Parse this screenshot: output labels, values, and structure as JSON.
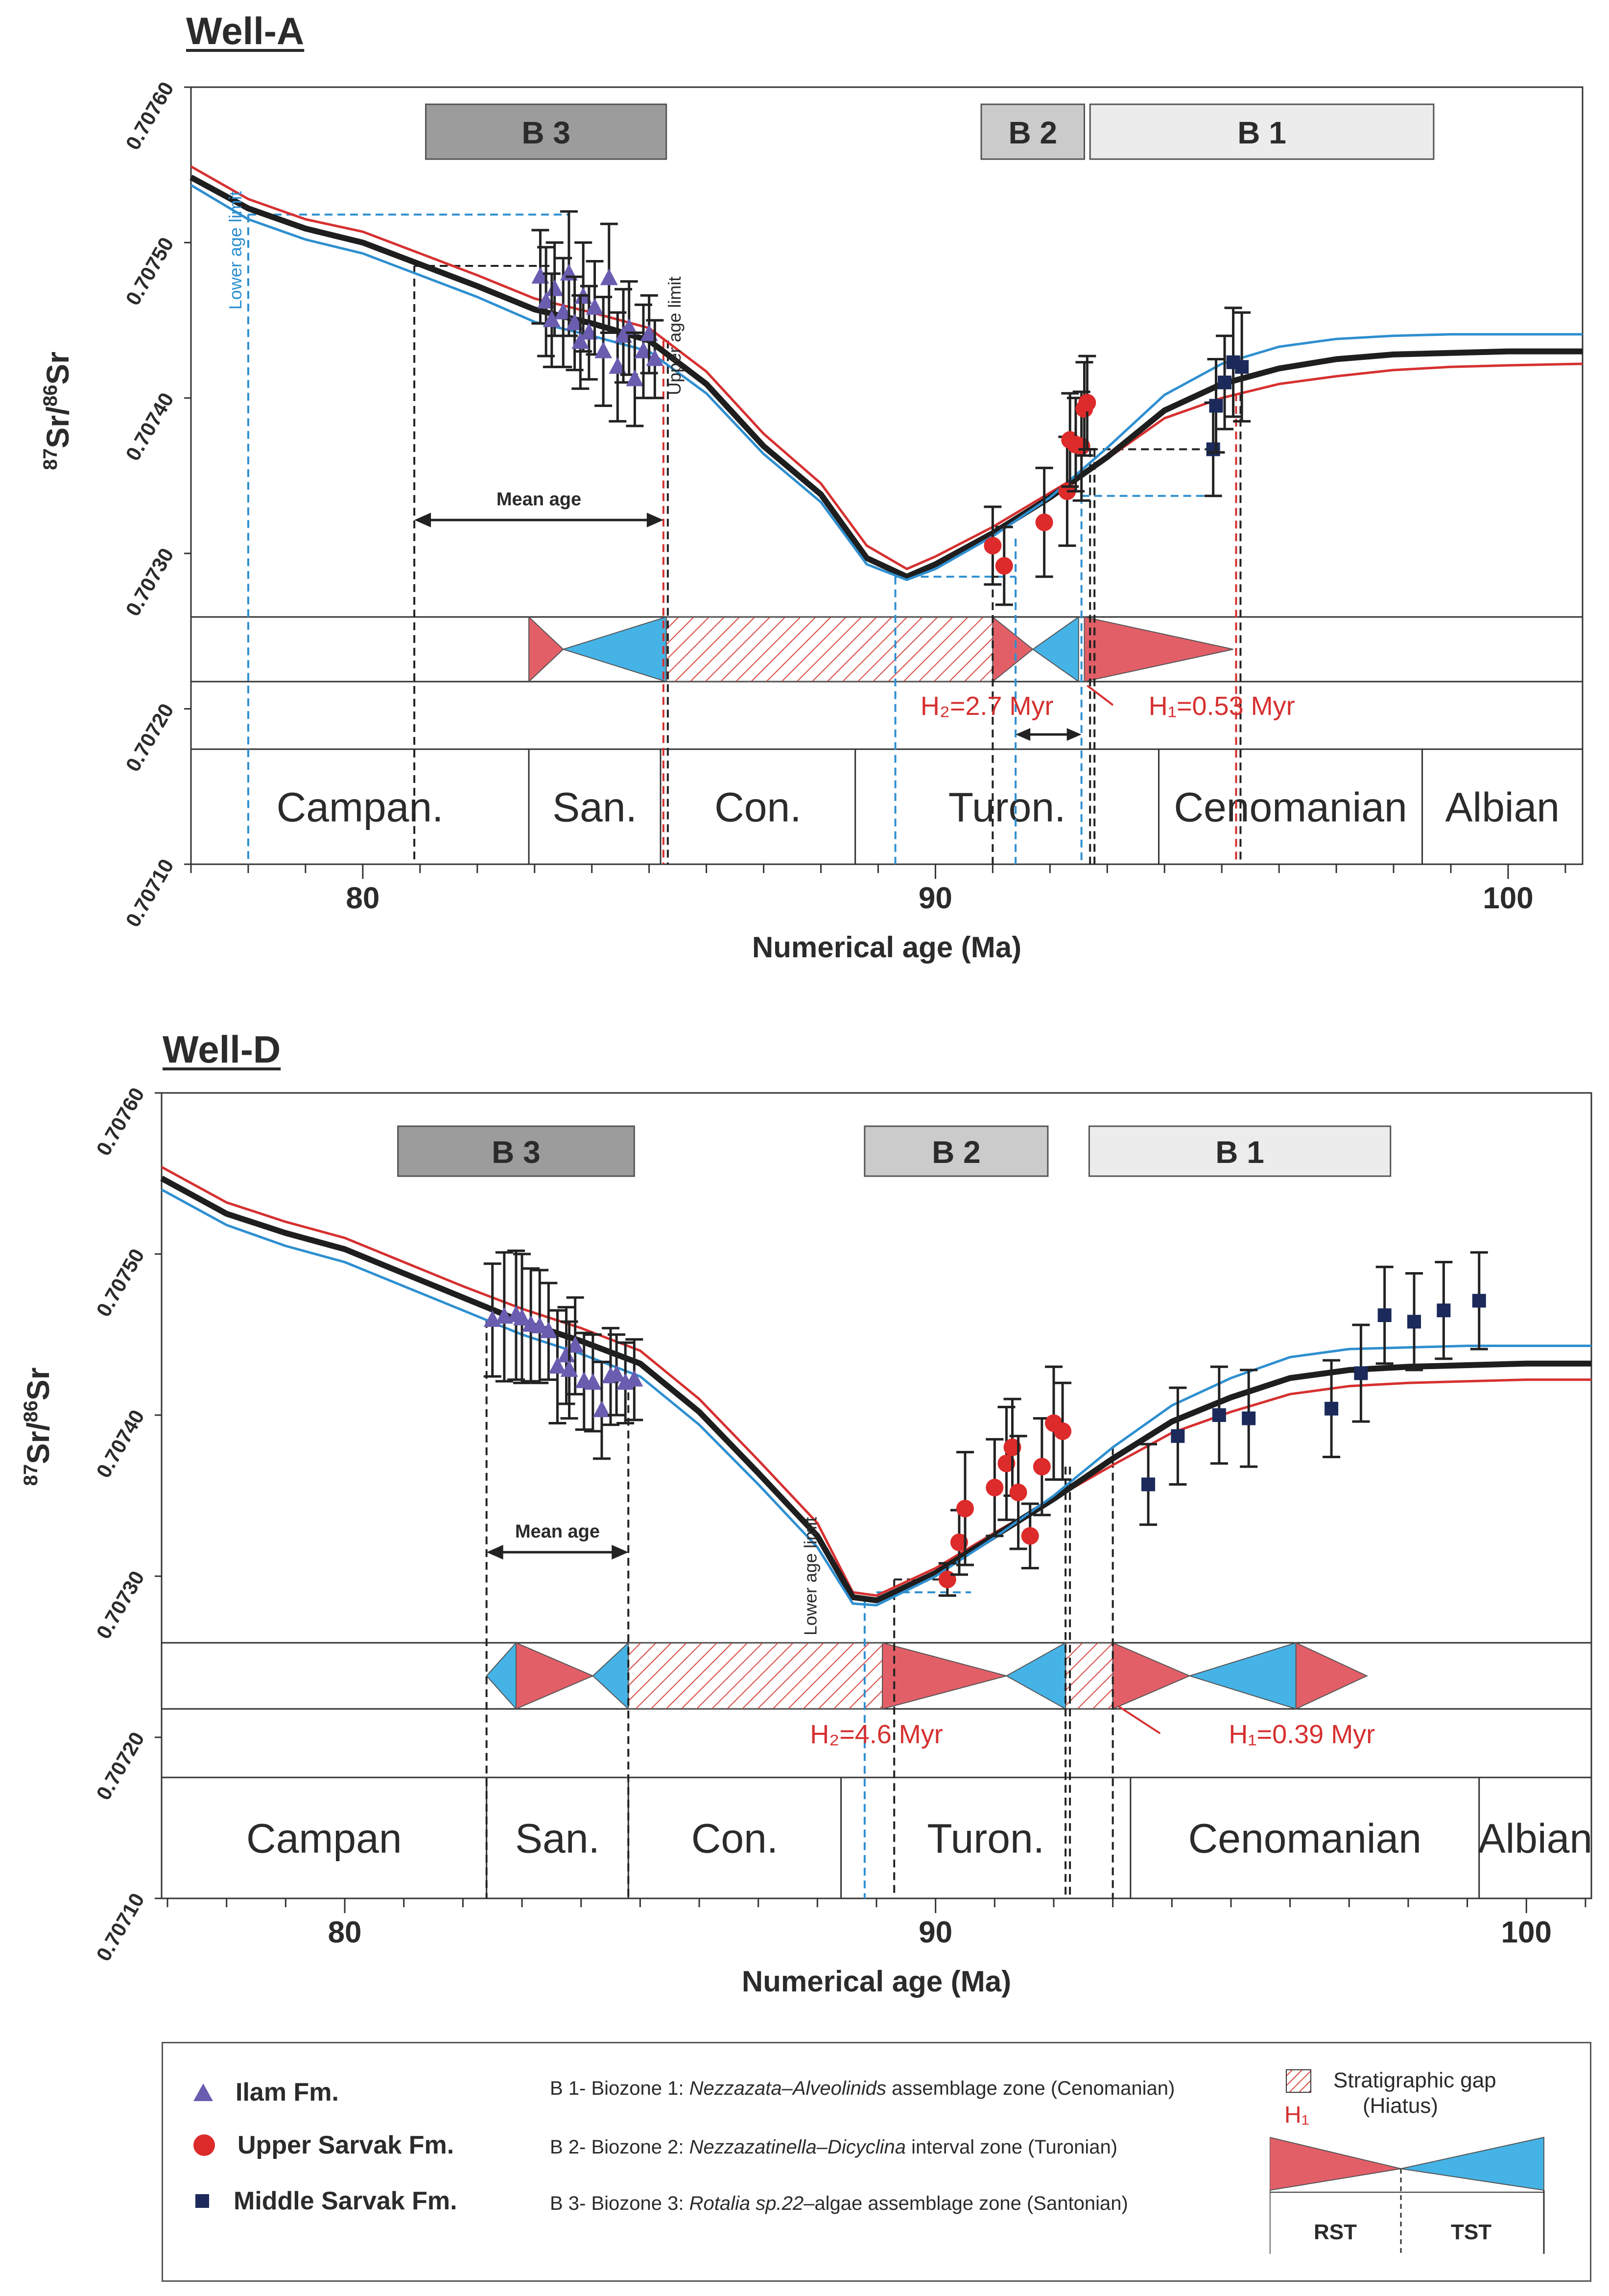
{
  "chart_data": [
    {
      "type": "line",
      "title": "Well-A",
      "xlabel": "Numerical age (Ma)",
      "ylabel": "87Sr/86Sr",
      "ylabel_sup1": "87",
      "ylabel_mid": "Sr/",
      "ylabel_sup2": "86",
      "ylabel_end": "Sr",
      "xlim": [
        77,
        101.3
      ],
      "ylim": [
        0.7071,
        0.7076
      ],
      "xticks": [
        80,
        90,
        100
      ],
      "xtick_labels": [
        "80",
        "90",
        "100"
      ],
      "yticks": [
        0.7071,
        0.7072,
        0.7073,
        0.7074,
        0.7075,
        0.7076
      ],
      "ytick_labels": [
        "0.70710",
        "0.70720",
        "0.70730",
        "0.70740",
        "0.70750",
        "0.70760"
      ],
      "stages": [
        {
          "name": "Campan.",
          "from": 77,
          "to": 82.9
        },
        {
          "name": "San.",
          "from": 82.9,
          "to": 85.2
        },
        {
          "name": "Con.",
          "from": 85.2,
          "to": 88.6
        },
        {
          "name": "Turon.",
          "from": 88.6,
          "to": 93.9
        },
        {
          "name": "Cenomanian",
          "from": 93.9,
          "to": 98.5
        },
        {
          "name": "Albian",
          "from": 98.5,
          "to": 101.3
        }
      ],
      "biozones": [
        {
          "label": "B 3",
          "from": 81.1,
          "to": 85.3,
          "color": "#9c9c9c"
        },
        {
          "label": "B 2",
          "from": 90.8,
          "to": 92.6,
          "color": "#cbcbcb"
        },
        {
          "label": "B 1",
          "from": 92.7,
          "to": 98.7,
          "color": "#ececec"
        }
      ],
      "sequences": [
        {
          "kind": "RST",
          "from": 82.9,
          "to": 83.5,
          "dir": "right"
        },
        {
          "kind": "TST",
          "from": 83.5,
          "to": 85.3,
          "dir": "left"
        },
        {
          "kind": "gap",
          "from": 85.3,
          "to": 91.0
        },
        {
          "kind": "RST",
          "from": 91.0,
          "to": 91.7,
          "dir": "right"
        },
        {
          "kind": "TST",
          "from": 91.7,
          "to": 92.5,
          "dir": "left"
        },
        {
          "kind": "RST",
          "from": 92.6,
          "to": 95.2,
          "dir": "right"
        }
      ],
      "annotations": {
        "lower_age_limit": "Lower age limit",
        "upper_age_limit": "Upper age limit",
        "mean_age": "Mean age",
        "h2_label": "H₂=2.7 Myr",
        "h1_label": "H₁=0.53 Myr"
      },
      "reference_curves": [
        {
          "name": "upper",
          "color": "#d63030",
          "x": [
            77,
            78,
            79,
            80,
            81,
            82,
            83,
            84,
            85,
            86,
            87,
            88,
            88.8,
            89.5,
            90,
            91,
            92,
            93,
            94,
            95,
            96,
            97,
            98,
            99,
            100,
            101.3
          ],
          "y": [
            0.707549,
            0.707528,
            0.707515,
            0.707507,
            0.707493,
            0.707479,
            0.707464,
            0.707455,
            0.707445,
            0.707417,
            0.707377,
            0.707345,
            0.707305,
            0.70729,
            0.707298,
            0.707317,
            0.707339,
            0.707361,
            0.707387,
            0.7074,
            0.707409,
            0.707414,
            0.707418,
            0.70742,
            0.707421,
            0.707422
          ]
        },
        {
          "name": "mean",
          "color": "#1e1e1e",
          "x": [
            77,
            78,
            79,
            80,
            81,
            82,
            83,
            84,
            85,
            86,
            87,
            88,
            88.8,
            89.5,
            90,
            91,
            92,
            93,
            94,
            95,
            96,
            97,
            98,
            99,
            100,
            101.3
          ],
          "y": [
            0.707542,
            0.707522,
            0.707509,
            0.7075,
            0.707486,
            0.707472,
            0.707457,
            0.707448,
            0.707437,
            0.707409,
            0.707369,
            0.707338,
            0.707297,
            0.707285,
            0.707293,
            0.707313,
            0.707336,
            0.707362,
            0.707392,
            0.707409,
            0.707419,
            0.707425,
            0.707428,
            0.707429,
            0.70743,
            0.70743
          ]
        },
        {
          "name": "lower",
          "color": "#2e8fd0",
          "x": [
            77,
            78,
            79,
            80,
            81,
            82,
            83,
            84,
            85,
            86,
            87,
            88,
            88.8,
            89.5,
            90,
            91,
            92,
            93,
            94,
            95,
            96,
            97,
            98,
            99,
            100,
            101.3
          ],
          "y": [
            0.707537,
            0.707515,
            0.707502,
            0.707493,
            0.707479,
            0.707465,
            0.707449,
            0.70744,
            0.70743,
            0.707403,
            0.707364,
            0.707333,
            0.707293,
            0.707283,
            0.70729,
            0.707311,
            0.707336,
            0.707368,
            0.707402,
            0.707422,
            0.707433,
            0.707438,
            0.70744,
            0.707441,
            0.707441,
            0.707441
          ]
        }
      ],
      "series": [
        {
          "name": "Ilam Fm.",
          "marker": "triangle",
          "color": "#6a5db0",
          "x": [
            83.1,
            83.2,
            83.35,
            83.5,
            83.6,
            83.7,
            83.85,
            83.95,
            84.05,
            84.2,
            84.3,
            84.45,
            84.55,
            84.65,
            84.75,
            84.9,
            85.0,
            85.1,
            83.3,
            83.8
          ],
          "y": [
            0.707478,
            0.707462,
            0.70747,
            0.707455,
            0.70748,
            0.707448,
            0.707465,
            0.707442,
            0.707458,
            0.70743,
            0.707477,
            0.70742,
            0.70744,
            0.707445,
            0.707412,
            0.70743,
            0.707441,
            0.707425,
            0.70745,
            0.707436
          ],
          "err": [
            3e-05,
            3.5e-05,
            3e-05,
            3.5e-05,
            4e-05,
            3e-05,
            3.5e-05,
            3e-05,
            3e-05,
            3.5e-05,
            3.5e-05,
            3.5e-05,
            3e-05,
            3e-05,
            3e-05,
            3e-05,
            2.5e-05,
            2.5e-05,
            3e-05,
            3e-05
          ]
        },
        {
          "name": "Upper Sarvak Fm.",
          "marker": "circle",
          "color": "#dd2a2a",
          "x": [
            91.0,
            91.2,
            91.9,
            92.3,
            92.35,
            92.45,
            92.55,
            92.6,
            92.65
          ],
          "y": [
            0.707305,
            0.707292,
            0.70732,
            0.70734,
            0.707373,
            0.70737,
            0.707369,
            0.707393,
            0.707397
          ],
          "err": [
            2.5e-05,
            2.5e-05,
            3.5e-05,
            3.5e-05,
            3e-05,
            3e-05,
            3.5e-05,
            3e-05,
            3e-05
          ]
        },
        {
          "name": "Middle Sarvak Fm.",
          "marker": "square",
          "color": "#1b2a5a",
          "x": [
            94.85,
            94.9,
            95.05,
            95.2,
            95.35
          ],
          "y": [
            0.707367,
            0.707395,
            0.70741,
            0.707423,
            0.70742
          ],
          "err": [
            3e-05,
            3e-05,
            3e-05,
            3.5e-05,
            3.5e-05
          ]
        }
      ]
    },
    {
      "type": "line",
      "title": "Well-D",
      "xlabel": "Numerical age (Ma)",
      "ylabel": "87Sr/86Sr",
      "ylabel_sup1": "87",
      "ylabel_mid": "Sr/",
      "ylabel_sup2": "86",
      "ylabel_end": "Sr",
      "xlim": [
        76.9,
        101.1
      ],
      "ylim": [
        0.7071,
        0.7076
      ],
      "xticks": [
        80,
        90,
        100
      ],
      "xtick_labels": [
        "80",
        "90",
        "100"
      ],
      "yticks": [
        0.7071,
        0.7072,
        0.7073,
        0.7074,
        0.7075,
        0.7076
      ],
      "ytick_labels": [
        "0.70710",
        "0.70720",
        "0.70730",
        "0.70740",
        "0.70750",
        "0.70760"
      ],
      "stages": [
        {
          "name": "Campan",
          "from": 76.9,
          "to": 82.4
        },
        {
          "name": "San.",
          "from": 82.4,
          "to": 84.8
        },
        {
          "name": "Con.",
          "from": 84.8,
          "to": 88.4
        },
        {
          "name": "Turon.",
          "from": 88.4,
          "to": 93.3
        },
        {
          "name": "Cenomanian",
          "from": 93.3,
          "to": 99.2
        },
        {
          "name": "Albian",
          "from": 99.2,
          "to": 101.1
        }
      ],
      "biozones": [
        {
          "label": "B 3",
          "from": 80.9,
          "to": 84.9,
          "color": "#9c9c9c"
        },
        {
          "label": "B 2",
          "from": 88.8,
          "to": 91.9,
          "color": "#cbcbcb"
        },
        {
          "label": "B 1",
          "from": 92.6,
          "to": 97.7,
          "color": "#ececec"
        }
      ],
      "sequences": [
        {
          "kind": "TST",
          "from": 82.4,
          "to": 82.9,
          "dir": "left"
        },
        {
          "kind": "RST",
          "from": 82.9,
          "to": 84.2,
          "dir": "right"
        },
        {
          "kind": "TST",
          "from": 84.2,
          "to": 84.8,
          "dir": "left"
        },
        {
          "kind": "gap",
          "from": 84.8,
          "to": 89.1
        },
        {
          "kind": "RST",
          "from": 89.1,
          "to": 91.2,
          "dir": "right"
        },
        {
          "kind": "TST",
          "from": 91.2,
          "to": 92.2,
          "dir": "left"
        },
        {
          "kind": "gap",
          "from": 92.2,
          "to": 93.0
        },
        {
          "kind": "RST",
          "from": 93.0,
          "to": 94.3,
          "dir": "right"
        },
        {
          "kind": "TST",
          "from": 94.3,
          "to": 96.1,
          "dir": "left"
        },
        {
          "kind": "RST",
          "from": 96.1,
          "to": 97.3,
          "dir": "right"
        }
      ],
      "annotations": {
        "lower_age_limit": "Lower age limit",
        "mean_age": "Mean age",
        "h2_label": "H₂=4.6 Myr",
        "h1_label": "H₁=0.39 Myr"
      },
      "reference_curves": [
        {
          "name": "upper",
          "color": "#d63030",
          "x": [
            76.9,
            78,
            79,
            80,
            81,
            82,
            83,
            84,
            85,
            86,
            87,
            88,
            88.6,
            89,
            90,
            91,
            92,
            93,
            94,
            95,
            96,
            97,
            98,
            99,
            100,
            101.1
          ],
          "y": [
            0.707554,
            0.707532,
            0.70752,
            0.70751,
            0.707495,
            0.70748,
            0.707466,
            0.707454,
            0.70744,
            0.70741,
            0.707372,
            0.707333,
            0.70729,
            0.707288,
            0.707305,
            0.707327,
            0.707348,
            0.707369,
            0.707389,
            0.707402,
            0.707413,
            0.707418,
            0.70742,
            0.707421,
            0.707422,
            0.707422
          ]
        },
        {
          "name": "mean",
          "color": "#1e1e1e",
          "x": [
            76.9,
            78,
            79,
            80,
            81,
            82,
            83,
            84,
            85,
            86,
            87,
            88,
            88.6,
            89,
            90,
            91,
            92,
            93,
            94,
            95,
            96,
            97,
            98,
            99,
            100,
            101.1
          ],
          "y": [
            0.707547,
            0.707525,
            0.707513,
            0.707503,
            0.707488,
            0.707473,
            0.707458,
            0.707446,
            0.707432,
            0.707402,
            0.707364,
            0.707325,
            0.707287,
            0.707285,
            0.707302,
            0.707325,
            0.707348,
            0.707373,
            0.707396,
            0.707411,
            0.707423,
            0.707428,
            0.70743,
            0.707431,
            0.707432,
            0.707432
          ]
        },
        {
          "name": "lower",
          "color": "#2e8fd0",
          "x": [
            76.9,
            78,
            79,
            80,
            81,
            82,
            83,
            84,
            85,
            86,
            87,
            88,
            88.6,
            89,
            90,
            91,
            92,
            93,
            94,
            95,
            96,
            97,
            98,
            99,
            100,
            101.1
          ],
          "y": [
            0.70754,
            0.707518,
            0.707505,
            0.707495,
            0.70748,
            0.707465,
            0.70745,
            0.707438,
            0.707424,
            0.707394,
            0.707357,
            0.707318,
            0.707283,
            0.707282,
            0.7073,
            0.707324,
            0.70735,
            0.70738,
            0.707406,
            0.707423,
            0.707436,
            0.707441,
            0.707442,
            0.707443,
            0.707443,
            0.707443
          ]
        }
      ],
      "series": [
        {
          "name": "Ilam Fm.",
          "marker": "triangle",
          "color": "#6a5db0",
          "x": [
            82.5,
            82.7,
            82.9,
            83.0,
            83.15,
            83.3,
            83.45,
            83.6,
            83.75,
            83.9,
            84.05,
            84.2,
            84.35,
            84.5,
            84.6,
            84.75,
            84.9,
            83.8
          ],
          "y": [
            0.707459,
            0.707461,
            0.707462,
            0.70746,
            0.707456,
            0.707455,
            0.707452,
            0.70743,
            0.707437,
            0.707443,
            0.707421,
            0.70742,
            0.707403,
            0.707424,
            0.707425,
            0.70742,
            0.707422,
            0.707428
          ],
          "err": [
            3.5e-05,
            4e-05,
            4e-05,
            4e-05,
            3.5e-05,
            3.5e-05,
            3e-05,
            3.5e-05,
            3e-05,
            3e-05,
            3e-05,
            3e-05,
            3e-05,
            3e-05,
            2.5e-05,
            2.5e-05,
            2.5e-05,
            3e-05
          ]
        },
        {
          "name": "Upper Sarvak Fm.",
          "marker": "circle",
          "color": "#dd2a2a",
          "x": [
            90.2,
            90.4,
            90.5,
            91.0,
            91.2,
            91.3,
            91.4,
            91.6,
            91.8,
            92.0,
            92.15
          ],
          "y": [
            0.707298,
            0.707321,
            0.707342,
            0.707355,
            0.70737,
            0.70738,
            0.707352,
            0.707325,
            0.707368,
            0.707395,
            0.70739
          ],
          "err": [
            1e-05,
            2e-05,
            3.5e-05,
            3e-05,
            3.5e-05,
            3e-05,
            3.5e-05,
            2e-05,
            3e-05,
            3.5e-05,
            3e-05
          ]
        },
        {
          "name": "Middle Sarvak Fm.",
          "marker": "square",
          "color": "#1b2a5a",
          "x": [
            93.6,
            94.1,
            94.8,
            95.3,
            96.7,
            97.2,
            97.6,
            98.1,
            98.6,
            99.2
          ],
          "y": [
            0.707357,
            0.707387,
            0.7074,
            0.707398,
            0.707404,
            0.707426,
            0.707462,
            0.707458,
            0.707465,
            0.707471
          ],
          "err": [
            2.5e-05,
            3e-05,
            3e-05,
            3e-05,
            3e-05,
            3e-05,
            3e-05,
            3e-05,
            3e-05,
            3e-05
          ]
        }
      ]
    }
  ],
  "legend": {
    "ilam": "Ilam Fm.",
    "upper_sarvak": "Upper Sarvak Fm.",
    "middle_sarvak": "Middle Sarvak Fm.",
    "b1_prefix": "B 1- Biozone 1: ",
    "b1_italic": "Nezzazata–Alveolinids",
    "b1_suffix": " assemblage zone (Cenomanian)",
    "b2_prefix": "B 2- Biozone 2: ",
    "b2_italic": "Nezzazatinella–Dicyclina",
    "b2_suffix": " interval zone (Turonian)",
    "b3_prefix": "B 3- Biozone 3: ",
    "b3_italic": "Rotalia sp.22",
    "b3_suffix": "–algae assemblage zone (Santonian)",
    "gap_label": "Stratigraphic gap",
    "gap_sub": "(Hiatus)",
    "h1": "H₁",
    "rst": "RST",
    "tst": "TST"
  },
  "colors": {
    "rst": "#e35f68",
    "tst": "#45b3e6",
    "gap_hatch": "#d9473f",
    "ilam": "#6a5db0",
    "upper_sarvak": "#dd2a2a",
    "middle_sarvak": "#1b2a5a",
    "guide_blue": "#2e8fd0",
    "guide_red": "#d63030",
    "annot_red": "#d63030"
  }
}
